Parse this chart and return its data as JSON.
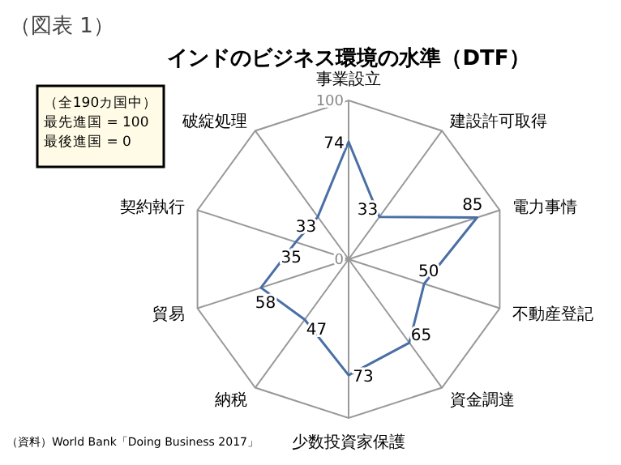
{
  "chart_data": {
    "type": "radar",
    "title": "インドのビジネス環境の水準（DTF）",
    "annotations": [
      "（図表 1）",
      "（全190カ国中）",
      "最先進国 = 100",
      "最後進国 = 0",
      "（資料）World Bank「Doing Business 2017」"
    ],
    "categories": [
      "事業設立",
      "建設許可取得",
      "電力事情",
      "不動産登記",
      "資金調達",
      "少数投資家保護",
      "納税",
      "貿易",
      "契約執行",
      "破綻処理"
    ],
    "series": [
      {
        "color": "#4a6fa5",
        "values": [
          74,
          33,
          85,
          50,
          65,
          73,
          47,
          58,
          35,
          33
        ]
      }
    ],
    "ylim": [
      0,
      100
    ],
    "yticks": [
      0,
      100
    ],
    "grid": true,
    "data_labels": true
  }
}
